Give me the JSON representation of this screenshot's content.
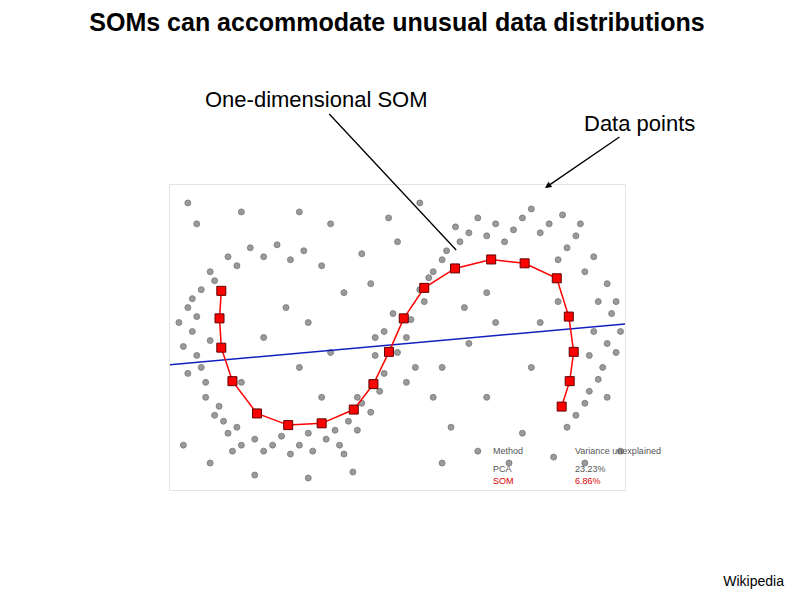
{
  "title": "SOMs can accommodate unusual data distributions",
  "source": "Wikipedia",
  "chart_data": {
    "type": "scatter",
    "xlim": [
      -1,
      101
    ],
    "ylim": [
      -1,
      101
    ],
    "tick_labels": false,
    "grid": false,
    "annotations": [
      {
        "text": "One-dimensional SOM"
      },
      {
        "text": "Data points"
      }
    ],
    "table": {
      "header": [
        "Method",
        "Variance unexplained"
      ],
      "rows": [
        [
          "PCA",
          "23.23%"
        ],
        [
          "SOM",
          "6.86%"
        ]
      ]
    },
    "series": [
      {
        "type": "scatter",
        "color": "#9a9a9a",
        "marker": "circle",
        "x": [
          3,
          4,
          5,
          6,
          3,
          7,
          9,
          12,
          15,
          20,
          26,
          31,
          37,
          41,
          44,
          46,
          8,
          12,
          17,
          23,
          29,
          5,
          2,
          6,
          10,
          14,
          22,
          28,
          34,
          39,
          42,
          47,
          45,
          41,
          18,
          11,
          7,
          4,
          9,
          14,
          20,
          26,
          33,
          24,
          30,
          36,
          8,
          1,
          13,
          38,
          56,
          58,
          61,
          66,
          72,
          78,
          84,
          90,
          94,
          97,
          98,
          97,
          96,
          93,
          90,
          60,
          64,
          70,
          76,
          82,
          88,
          92,
          95,
          94,
          99,
          95,
          92,
          88,
          53,
          52,
          55,
          68,
          80,
          87,
          99,
          100,
          91,
          74,
          57,
          63,
          86,
          93,
          97,
          50,
          47,
          54,
          52,
          49,
          45,
          58,
          62,
          68,
          75,
          60,
          66,
          70,
          72,
          80,
          78,
          85,
          92,
          35,
          30,
          28,
          25,
          20,
          38,
          42,
          35,
          28,
          15,
          5,
          48,
          55,
          40,
          30,
          18,
          8,
          2,
          65,
          60,
          82,
          15,
          33,
          44,
          50,
          70,
          86,
          3,
          100
        ],
        "y": [
          60,
          52,
          44,
          66,
          38,
          30,
          24,
          18,
          14,
          12,
          11,
          12,
          14,
          19,
          25,
          32,
          72,
          77,
          80,
          81,
          79,
          57,
          47,
          40,
          27,
          20,
          14,
          14,
          16,
          22,
          28,
          38,
          44,
          30,
          16,
          22,
          35,
          63,
          69,
          74,
          77,
          76,
          74,
          17,
          18,
          19,
          49,
          55,
          12,
          11,
          62,
          72,
          79,
          85,
          88,
          90,
          88,
          84,
          77,
          68,
          58,
          48,
          40,
          32,
          24,
          76,
          82,
          84,
          86,
          85,
          80,
          72,
          62,
          52,
          45,
          36,
          28,
          20,
          56,
          50,
          66,
          90,
          93,
          91,
          62,
          52,
          88,
          82,
          70,
          87,
          76,
          44,
          30,
          45,
          52,
          40,
          35,
          58,
          50,
          30,
          20,
          12,
          8,
          40,
          48,
          30,
          55,
          40,
          18,
          10,
          8,
          45,
          55,
          40,
          60,
          50,
          65,
          78,
          88,
          92,
          92,
          88,
          90,
          95,
          5,
          3,
          4,
          8,
          14,
          60,
          8,
          55,
          35,
          30,
          68,
          82,
          65,
          62,
          95,
          12
        ]
      },
      {
        "type": "line",
        "color": "#1020c0",
        "line_style": "solid",
        "x": [
          -1,
          101
        ],
        "y": [
          40.9,
          54.5
        ]
      },
      {
        "type": "line",
        "color": "#ff0000",
        "marker": "square",
        "line_style": "solid",
        "x": [
          10.5,
          10.1,
          10.5,
          13.0,
          18.5,
          25.5,
          33.0,
          40.2,
          44.6,
          48.1,
          51.4,
          56.0,
          62.9,
          71.0,
          78.5,
          85.7,
          88.4,
          89.5,
          88.6,
          86.8
        ],
        "y": [
          65.6,
          56.4,
          46.6,
          35.4,
          24.6,
          20.7,
          21.3,
          25.9,
          34.4,
          45.2,
          56.4,
          66.6,
          73.1,
          76.1,
          74.8,
          69.8,
          57.0,
          45.2,
          35.4,
          26.9
        ]
      }
    ]
  }
}
